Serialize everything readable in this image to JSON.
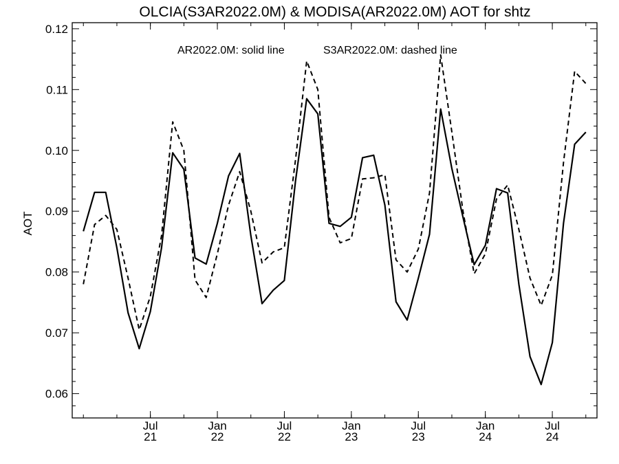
{
  "chart_data": {
    "type": "line",
    "title": "OLCIA(S3AR2022.0M) & MODISA(AR2022.0M)  AOT for shtz",
    "annotation_solid": "AR2022.0M: solid line",
    "annotation_dashed": "S3AR2022.0M: dashed line",
    "xlabel": "",
    "ylabel": "AOT",
    "ylim": [
      0.056,
      0.121
    ],
    "yticks": [
      0.06,
      0.07,
      0.08,
      0.09,
      0.1,
      0.11,
      0.12
    ],
    "ytick_labels": [
      "0.06",
      "0.07",
      "0.08",
      "0.09",
      "0.10",
      "0.11",
      "0.12"
    ],
    "xlim": [
      "2020-12",
      "2024-11"
    ],
    "xticks": [
      {
        "month": "2021-07",
        "line1": "Jul",
        "line2": "21"
      },
      {
        "month": "2022-01",
        "line1": "Jan",
        "line2": "22"
      },
      {
        "month": "2022-07",
        "line1": "Jul",
        "line2": "22"
      },
      {
        "month": "2023-01",
        "line1": "Jan",
        "line2": "23"
      },
      {
        "month": "2023-07",
        "line1": "Jul",
        "line2": "23"
      },
      {
        "month": "2024-01",
        "line1": "Jan",
        "line2": "24"
      },
      {
        "month": "2024-07",
        "line1": "Jul",
        "line2": "24"
      }
    ],
    "x": [
      "2021-01",
      "2021-02",
      "2021-03",
      "2021-04",
      "2021-05",
      "2021-06",
      "2021-07",
      "2021-08",
      "2021-09",
      "2021-10",
      "2021-11",
      "2021-12",
      "2022-01",
      "2022-02",
      "2022-03",
      "2022-04",
      "2022-05",
      "2022-06",
      "2022-07",
      "2022-08",
      "2022-09",
      "2022-10",
      "2022-11",
      "2022-12",
      "2023-01",
      "2023-02",
      "2023-03",
      "2023-04",
      "2023-05",
      "2023-06",
      "2023-07",
      "2023-08",
      "2023-09",
      "2023-10",
      "2023-11",
      "2023-12",
      "2024-01",
      "2024-02",
      "2024-03",
      "2024-04",
      "2024-05",
      "2024-06",
      "2024-07",
      "2024-08",
      "2024-09",
      "2024-10"
    ],
    "series": [
      {
        "style": "solid",
        "values": [
          0.0867,
          0.0931,
          0.0931,
          0.084,
          0.0733,
          0.0674,
          0.0735,
          0.084,
          0.0996,
          0.0969,
          0.0823,
          0.0813,
          0.088,
          0.0958,
          0.0995,
          0.086,
          0.0748,
          0.077,
          0.0786,
          0.095,
          0.1085,
          0.106,
          0.088,
          0.0875,
          0.089,
          0.0988,
          0.0992,
          0.091,
          0.0751,
          0.0721,
          0.079,
          0.0862,
          0.1068,
          0.097,
          0.089,
          0.0812,
          0.0844,
          0.0937,
          0.093,
          0.078,
          0.0661,
          0.0615,
          0.0684,
          0.088,
          0.101,
          0.103
        ]
      },
      {
        "style": "dashed",
        "values": [
          0.078,
          0.0878,
          0.0893,
          0.087,
          0.079,
          0.0705,
          0.076,
          0.086,
          0.1047,
          0.1,
          0.0787,
          0.0758,
          0.083,
          0.091,
          0.0965,
          0.09,
          0.0815,
          0.0833,
          0.084,
          0.0985,
          0.1147,
          0.11,
          0.089,
          0.0848,
          0.0855,
          0.0953,
          0.0955,
          0.096,
          0.082,
          0.08,
          0.0838,
          0.093,
          0.1157,
          0.103,
          0.09,
          0.0797,
          0.083,
          0.092,
          0.0943,
          0.087,
          0.079,
          0.0745,
          0.0795,
          0.098,
          0.113,
          0.111
        ]
      }
    ]
  }
}
